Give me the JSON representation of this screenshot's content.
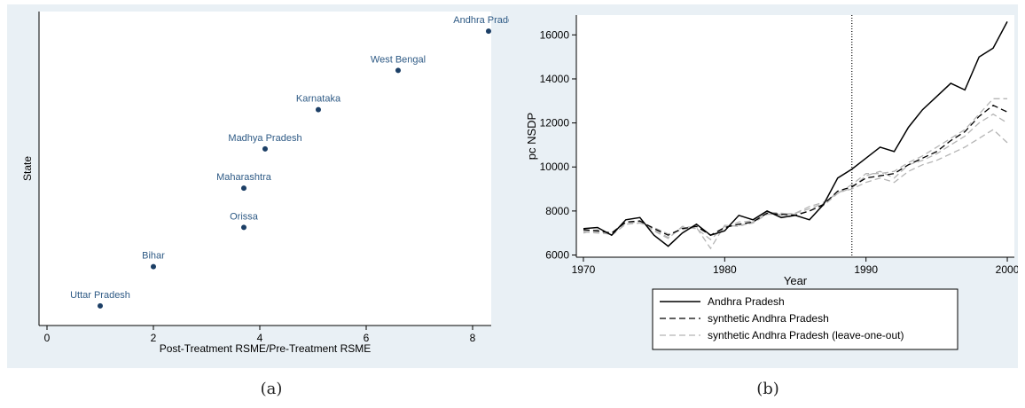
{
  "captions": {
    "a": "(a)",
    "b": "(b)"
  },
  "colors": {
    "panel_bg": "#e9f0f5",
    "plot_bg": "#ffffff",
    "marker": "#1c3f66",
    "label": "#2e5a85",
    "actual": "#000000",
    "synthetic": "#000000",
    "loo": "#b5b5b5"
  },
  "chart_data": [
    {
      "id": "a",
      "type": "scatter",
      "xlabel": "Post-Treatment RSME/Pre-Treatment RSME",
      "ylabel": "State",
      "xlim": [
        -0.15,
        8.35
      ],
      "ylim": [
        0.5,
        8.5
      ],
      "xticks": [
        0,
        2,
        4,
        6,
        8
      ],
      "grid": false,
      "points": [
        {
          "label": "Uttar Pradesh",
          "x": 1.0,
          "y": 1
        },
        {
          "label": "Bihar",
          "x": 2.0,
          "y": 2
        },
        {
          "label": "Orissa",
          "x": 3.7,
          "y": 3
        },
        {
          "label": "Maharashtra",
          "x": 3.7,
          "y": 4
        },
        {
          "label": "Madhya Pradesh",
          "x": 4.1,
          "y": 5
        },
        {
          "label": "Karnataka",
          "x": 5.1,
          "y": 6
        },
        {
          "label": "West Bengal",
          "x": 6.6,
          "y": 7
        },
        {
          "label": "Andhra Pradesh",
          "x": 8.3,
          "y": 8
        }
      ]
    },
    {
      "id": "b",
      "type": "line",
      "xlabel": "Year",
      "ylabel": "pc NSDP",
      "xlim": [
        1969.5,
        2000.5
      ],
      "ylim": [
        5900,
        16900
      ],
      "xticks": [
        1970,
        1980,
        1990,
        2000
      ],
      "yticks": [
        6000,
        8000,
        10000,
        12000,
        14000,
        16000
      ],
      "treatment_line": 1989,
      "grid": false,
      "legend_position": "bottom",
      "x": [
        1970,
        1971,
        1972,
        1973,
        1974,
        1975,
        1976,
        1977,
        1978,
        1979,
        1980,
        1981,
        1982,
        1983,
        1984,
        1985,
        1986,
        1987,
        1988,
        1989,
        1990,
        1991,
        1992,
        1993,
        1994,
        1995,
        1996,
        1997,
        1998,
        1999,
        2000
      ],
      "series": [
        {
          "name": "Andhra Pradesh",
          "style": "solid",
          "values": [
            7200,
            7250,
            6900,
            7600,
            7700,
            6900,
            6400,
            7000,
            7400,
            6900,
            7100,
            7800,
            7600,
            8000,
            7700,
            7800,
            7600,
            8300,
            9500,
            9900,
            10400,
            10900,
            10700,
            11800,
            12600,
            13200,
            13800,
            13500,
            15000,
            15400,
            16600
          ]
        },
        {
          "name": "synthetic Andhra Pradesh",
          "style": "dash",
          "values": [
            7150,
            7100,
            7000,
            7500,
            7550,
            7200,
            6900,
            7200,
            7300,
            6900,
            7250,
            7400,
            7500,
            7900,
            7850,
            7800,
            8000,
            8300,
            8900,
            9100,
            9500,
            9600,
            9700,
            10100,
            10400,
            10700,
            11200,
            11600,
            12300,
            12800,
            12500
          ]
        },
        {
          "name": "synthetic Andhra Pradesh (leave-one-out)",
          "style": "dash-grey",
          "values": [
            7050,
            7000,
            6950,
            7450,
            7500,
            7150,
            6800,
            7250,
            7200,
            6700,
            7300,
            7350,
            7450,
            7850,
            7850,
            7900,
            8100,
            8350,
            8850,
            9000,
            9300,
            9500,
            9300,
            9800,
            10100,
            10300,
            10600,
            10900,
            11300,
            11700,
            11100
          ]
        },
        {
          "name": "",
          "style": "dash-grey",
          "values": [
            7100,
            7050,
            7000,
            7500,
            7500,
            7100,
            6750,
            7300,
            7250,
            6300,
            7350,
            7300,
            7500,
            7950,
            7800,
            7900,
            8200,
            8400,
            8800,
            9200,
            9700,
            9700,
            9800,
            10200,
            10500,
            10900,
            11300,
            11700,
            12400,
            13100,
            13100
          ]
        },
        {
          "name": "",
          "style": "dash-grey",
          "values": [
            7000,
            7150,
            6900,
            7400,
            7450,
            7250,
            6950,
            7150,
            7350,
            6900,
            7200,
            7500,
            7550,
            7950,
            7900,
            7850,
            8000,
            8250,
            8800,
            9050,
            9600,
            9800,
            9500,
            10100,
            10300,
            10600,
            11000,
            11400,
            12000,
            12400,
            12000
          ]
        }
      ]
    }
  ]
}
